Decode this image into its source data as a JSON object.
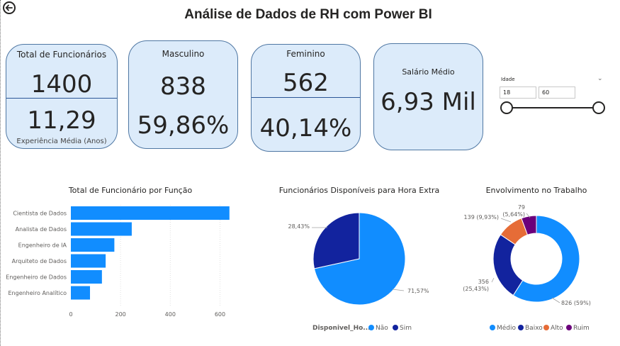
{
  "page": {
    "title": "Análise de Dados de RH com Power BI"
  },
  "cards": {
    "total": {
      "label": "Total de Funcionários",
      "value": "1400",
      "sub_value": "11,29",
      "sub_label": "Experiência Média (Anos)"
    },
    "masculino": {
      "label": "Masculino",
      "value": "838",
      "sub_value": "59,86%"
    },
    "feminino": {
      "label": "Feminino",
      "value": "562",
      "sub_value": "40,14%"
    },
    "salario": {
      "label": "Salário Médio",
      "value": "6,93 Mil"
    }
  },
  "slicer": {
    "title": "Idade",
    "min_value": "18",
    "max_value": "60"
  },
  "chart_data": [
    {
      "type": "bar",
      "orientation": "horizontal",
      "title": "Total de Funcionário por Função",
      "categories": [
        "Cientista de Dados",
        "Analista de Dados",
        "Engenheiro de IA",
        "Arquiteto de Dados",
        "Engenheiro de Dados",
        "Engenheiro Analítico"
      ],
      "values": [
        638,
        245,
        175,
        140,
        125,
        77
      ],
      "xlim": [
        0,
        650
      ],
      "x_ticks": [
        "0",
        "200",
        "400",
        "600"
      ],
      "color": "#118dff"
    },
    {
      "type": "pie",
      "title": "Funcionários Disponíveis para Hora Extra",
      "legend_title": "Disponivel_Ho...",
      "slices": [
        {
          "name": "Não",
          "value": 71.57,
          "label": "71,57%",
          "color": "#118dff"
        },
        {
          "name": "Sim",
          "value": 28.43,
          "label": "28,43%",
          "color": "#12239e"
        }
      ]
    },
    {
      "type": "pie",
      "donut": true,
      "title": "Envolvimento no Trabalho",
      "slices": [
        {
          "name": "Médio",
          "value": 826,
          "label": "826 (59%)",
          "color": "#118dff"
        },
        {
          "name": "Baixo",
          "value": 356,
          "label": "356 (25,43%)",
          "color": "#12239e"
        },
        {
          "name": "Alto",
          "value": 139,
          "label": "139 (9,93%)",
          "color": "#e66c37"
        },
        {
          "name": "Ruim",
          "value": 79,
          "label": "79 (5,64%)",
          "color": "#6b007b"
        }
      ]
    }
  ]
}
